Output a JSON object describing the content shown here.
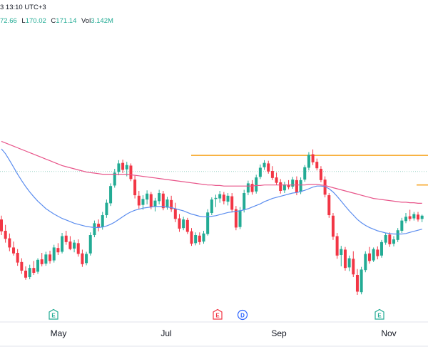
{
  "header": {
    "timestamp_fragment": "3 13:10 UTC+3",
    "ohlc": [
      {
        "key": "",
        "value": "72.66"
      },
      {
        "key": "L",
        "value": "170.02"
      },
      {
        "key": "C",
        "value": "171.14"
      },
      {
        "key": "Vol",
        "value": "3.142M"
      }
    ]
  },
  "colors": {
    "up": "#22ab94",
    "down": "#f23645",
    "ma_short": "#5b8def",
    "ma_long": "#e8558a",
    "resistance": "#f7a21b",
    "price_line": "#9fd6c9",
    "earnings_badge": "#22ab94",
    "earnings_badge_red": "#f23645",
    "dividend_badge": "#2962ff"
  },
  "chart_data": {
    "type": "candlestick",
    "x_tick_labels": [
      "May",
      "Jul",
      "Sep",
      "Nov"
    ],
    "events": [
      {
        "type": "earnings",
        "label": "E",
        "color_key": "earnings_badge",
        "month": "Apr"
      },
      {
        "type": "earnings",
        "label": "E",
        "color_key": "earnings_badge_red",
        "month": "Jul"
      },
      {
        "type": "dividend",
        "label": "D",
        "color_key": "dividend_badge",
        "month": "Aug"
      },
      {
        "type": "earnings",
        "label": "E",
        "color_key": "earnings_badge",
        "month": "Oct"
      }
    ],
    "resistance_levels": [
      188.0,
      182.5
    ],
    "last_price_level": 185.0,
    "candles": [
      [
        176.1,
        176.8,
        173.2,
        173.9
      ],
      [
        174.0,
        175.1,
        171.8,
        172.5
      ],
      [
        172.6,
        173.5,
        170.2,
        170.9
      ],
      [
        170.9,
        172.0,
        169.4,
        169.8
      ],
      [
        169.9,
        170.6,
        167.5,
        168.1
      ],
      [
        168.2,
        168.9,
        166.0,
        166.6
      ],
      [
        166.6,
        167.4,
        164.9,
        165.3
      ],
      [
        165.4,
        167.7,
        165.0,
        167.1
      ],
      [
        167.1,
        168.4,
        165.8,
        166.2
      ],
      [
        166.4,
        168.9,
        166.0,
        168.6
      ],
      [
        168.7,
        169.9,
        167.4,
        167.8
      ],
      [
        167.9,
        170.1,
        167.5,
        169.6
      ],
      [
        169.6,
        170.3,
        167.9,
        168.4
      ],
      [
        168.5,
        171.4,
        168.1,
        170.9
      ],
      [
        170.8,
        171.7,
        169.5,
        170.0
      ],
      [
        170.1,
        173.6,
        169.8,
        173.0
      ],
      [
        173.1,
        174.0,
        171.4,
        171.9
      ],
      [
        172.0,
        173.0,
        170.4,
        170.6
      ],
      [
        170.7,
        172.3,
        170.0,
        171.8
      ],
      [
        171.7,
        172.4,
        169.2,
        169.7
      ],
      [
        169.8,
        170.5,
        167.3,
        167.8
      ],
      [
        168.0,
        170.1,
        167.6,
        169.7
      ],
      [
        169.8,
        173.7,
        169.4,
        173.2
      ],
      [
        173.2,
        175.9,
        172.8,
        175.4
      ],
      [
        175.3,
        176.1,
        173.9,
        174.6
      ],
      [
        174.7,
        177.5,
        174.2,
        176.9
      ],
      [
        176.9,
        179.8,
        176.4,
        179.2
      ],
      [
        179.1,
        182.8,
        178.6,
        182.3
      ],
      [
        182.4,
        185.5,
        182.0,
        184.8
      ],
      [
        184.9,
        187.1,
        184.3,
        186.5
      ],
      [
        186.6,
        187.2,
        184.7,
        185.3
      ],
      [
        185.4,
        186.8,
        184.1,
        186.2
      ],
      [
        186.1,
        186.5,
        183.2,
        183.6
      ],
      [
        183.5,
        184.2,
        180.0,
        180.6
      ],
      [
        180.5,
        181.4,
        178.1,
        178.7
      ],
      [
        178.8,
        180.6,
        177.9,
        179.9
      ],
      [
        179.8,
        181.5,
        178.9,
        180.9
      ],
      [
        180.8,
        181.2,
        178.0,
        178.4
      ],
      [
        178.5,
        180.1,
        177.6,
        179.6
      ],
      [
        179.5,
        181.6,
        178.9,
        181.0
      ],
      [
        180.9,
        181.4,
        177.8,
        178.2
      ],
      [
        178.3,
        180.3,
        177.9,
        179.8
      ],
      [
        179.7,
        180.5,
        177.5,
        178.0
      ],
      [
        178.1,
        179.2,
        175.6,
        176.2
      ],
      [
        176.3,
        177.1,
        173.8,
        174.4
      ],
      [
        174.5,
        176.6,
        174.1,
        176.1
      ],
      [
        176.0,
        176.4,
        173.4,
        173.8
      ],
      [
        173.9,
        174.5,
        171.2,
        171.6
      ],
      [
        171.7,
        173.7,
        171.3,
        173.2
      ],
      [
        173.1,
        173.7,
        171.4,
        171.9
      ],
      [
        172.0,
        174.0,
        171.6,
        173.5
      ],
      [
        173.4,
        178.0,
        173.1,
        177.4
      ],
      [
        177.3,
        180.2,
        176.9,
        179.8
      ],
      [
        179.9,
        180.7,
        178.4,
        180.1
      ],
      [
        180.0,
        181.4,
        179.2,
        180.8
      ],
      [
        180.7,
        181.2,
        178.9,
        179.5
      ],
      [
        179.4,
        181.0,
        178.7,
        180.5
      ],
      [
        180.4,
        181.0,
        177.4,
        177.9
      ],
      [
        178.0,
        178.6,
        174.1,
        174.6
      ],
      [
        174.7,
        178.4,
        174.3,
        177.8
      ],
      [
        177.9,
        181.6,
        177.4,
        181.0
      ],
      [
        181.1,
        183.3,
        180.6,
        182.8
      ],
      [
        182.7,
        183.4,
        180.7,
        181.2
      ],
      [
        181.3,
        184.4,
        180.9,
        183.9
      ],
      [
        184.0,
        186.3,
        183.6,
        185.7
      ],
      [
        185.8,
        187.1,
        185.3,
        186.6
      ],
      [
        186.5,
        187.0,
        184.6,
        185.0
      ],
      [
        185.1,
        186.0,
        183.4,
        183.8
      ],
      [
        183.9,
        184.8,
        182.5,
        182.9
      ],
      [
        183.0,
        183.6,
        180.9,
        181.4
      ],
      [
        181.5,
        183.1,
        181.0,
        182.6
      ],
      [
        182.5,
        183.4,
        181.7,
        182.1
      ],
      [
        182.2,
        184.0,
        181.8,
        183.5
      ],
      [
        183.4,
        184.1,
        180.6,
        181.1
      ],
      [
        181.2,
        183.9,
        180.8,
        183.4
      ],
      [
        183.5,
        186.2,
        183.1,
        185.8
      ],
      [
        185.7,
        188.6,
        185.2,
        188.1
      ],
      [
        188.2,
        189.1,
        186.2,
        186.7
      ],
      [
        186.8,
        187.4,
        185.2,
        185.6
      ],
      [
        185.5,
        186.0,
        183.0,
        183.4
      ],
      [
        183.5,
        184.1,
        180.2,
        180.7
      ],
      [
        180.6,
        181.0,
        176.4,
        176.9
      ],
      [
        176.8,
        177.3,
        172.3,
        172.9
      ],
      [
        173.0,
        173.6,
        168.8,
        169.4
      ],
      [
        169.5,
        171.2,
        167.4,
        170.6
      ],
      [
        170.5,
        171.0,
        166.6,
        167.1
      ],
      [
        167.2,
        169.4,
        166.5,
        168.9
      ],
      [
        168.8,
        170.2,
        165.4,
        165.9
      ],
      [
        165.8,
        166.9,
        162.1,
        162.7
      ],
      [
        162.6,
        167.3,
        162.2,
        166.8
      ],
      [
        166.7,
        170.2,
        166.3,
        169.7
      ],
      [
        169.8,
        171.0,
        167.9,
        168.4
      ],
      [
        168.5,
        170.9,
        168.2,
        170.6
      ],
      [
        170.5,
        171.1,
        168.7,
        169.3
      ],
      [
        169.4,
        172.3,
        169.0,
        171.9
      ],
      [
        171.8,
        173.6,
        171.4,
        173.2
      ],
      [
        173.3,
        173.7,
        171.0,
        171.5
      ],
      [
        171.6,
        173.0,
        171.1,
        172.4
      ],
      [
        172.3,
        174.5,
        171.9,
        174.1
      ],
      [
        174.0,
        176.4,
        173.6,
        175.9
      ],
      [
        175.8,
        177.3,
        175.4,
        176.6
      ],
      [
        176.7,
        177.9,
        175.8,
        176.2
      ],
      [
        176.3,
        177.5,
        175.9,
        177.1
      ],
      [
        177.0,
        177.5,
        175.7,
        176.1
      ],
      [
        176.2,
        177.0,
        175.6,
        176.8
      ]
    ],
    "ma_short_values": [
      189.2,
      188.3,
      187.1,
      185.8,
      184.5,
      183.3,
      182.2,
      181.2,
      180.3,
      179.5,
      178.8,
      178.1,
      177.6,
      177.1,
      176.7,
      176.3,
      176.0,
      175.7,
      175.4,
      175.2,
      175.0,
      174.8,
      174.7,
      174.6,
      174.6,
      174.7,
      174.9,
      175.2,
      175.6,
      176.1,
      176.6,
      177.1,
      177.5,
      177.8,
      178.0,
      178.2,
      178.3,
      178.4,
      178.5,
      178.5,
      178.5,
      178.4,
      178.3,
      178.1,
      177.9,
      177.7,
      177.4,
      177.1,
      176.9,
      176.7,
      176.6,
      176.6,
      176.7,
      176.8,
      177.0,
      177.2,
      177.4,
      177.5,
      177.6,
      177.7,
      177.9,
      178.1,
      178.4,
      178.7,
      179.0,
      179.4,
      179.7,
      180.0,
      180.2,
      180.4,
      180.6,
      180.8,
      181.0,
      181.1,
      181.3,
      181.5,
      181.8,
      182.1,
      182.3,
      182.3,
      182.2,
      181.8,
      181.2,
      180.4,
      179.5,
      178.6,
      177.7,
      176.9,
      176.1,
      175.5,
      175.0,
      174.6,
      174.3,
      174.0,
      173.8,
      173.6,
      173.5,
      173.4,
      173.4,
      173.4,
      173.5,
      173.7,
      173.9,
      174.1,
      174.3
    ],
    "ma_long_values": [
      190.6,
      190.3,
      190.0,
      189.7,
      189.4,
      189.1,
      188.8,
      188.5,
      188.2,
      187.9,
      187.6,
      187.3,
      187.0,
      186.7,
      186.4,
      186.1,
      185.9,
      185.7,
      185.5,
      185.3,
      185.1,
      184.9,
      184.8,
      184.7,
      184.6,
      184.5,
      184.5,
      184.5,
      184.5,
      184.5,
      184.5,
      184.5,
      184.4,
      184.3,
      184.2,
      184.1,
      184.0,
      183.9,
      183.8,
      183.7,
      183.6,
      183.5,
      183.4,
      183.3,
      183.2,
      183.1,
      183.0,
      182.9,
      182.8,
      182.7,
      182.6,
      182.5,
      182.5,
      182.4,
      182.4,
      182.3,
      182.3,
      182.3,
      182.3,
      182.3,
      182.3,
      182.3,
      182.3,
      182.4,
      182.4,
      182.5,
      182.5,
      182.5,
      182.5,
      182.5,
      182.5,
      182.5,
      182.5,
      182.5,
      182.5,
      182.5,
      182.6,
      182.6,
      182.6,
      182.5,
      182.4,
      182.2,
      182.0,
      181.8,
      181.6,
      181.4,
      181.2,
      181.0,
      180.8,
      180.6,
      180.4,
      180.2,
      180.0,
      179.9,
      179.8,
      179.7,
      179.6,
      179.5,
      179.4,
      179.3,
      179.3,
      179.2,
      179.2,
      179.1,
      179.1
    ]
  }
}
